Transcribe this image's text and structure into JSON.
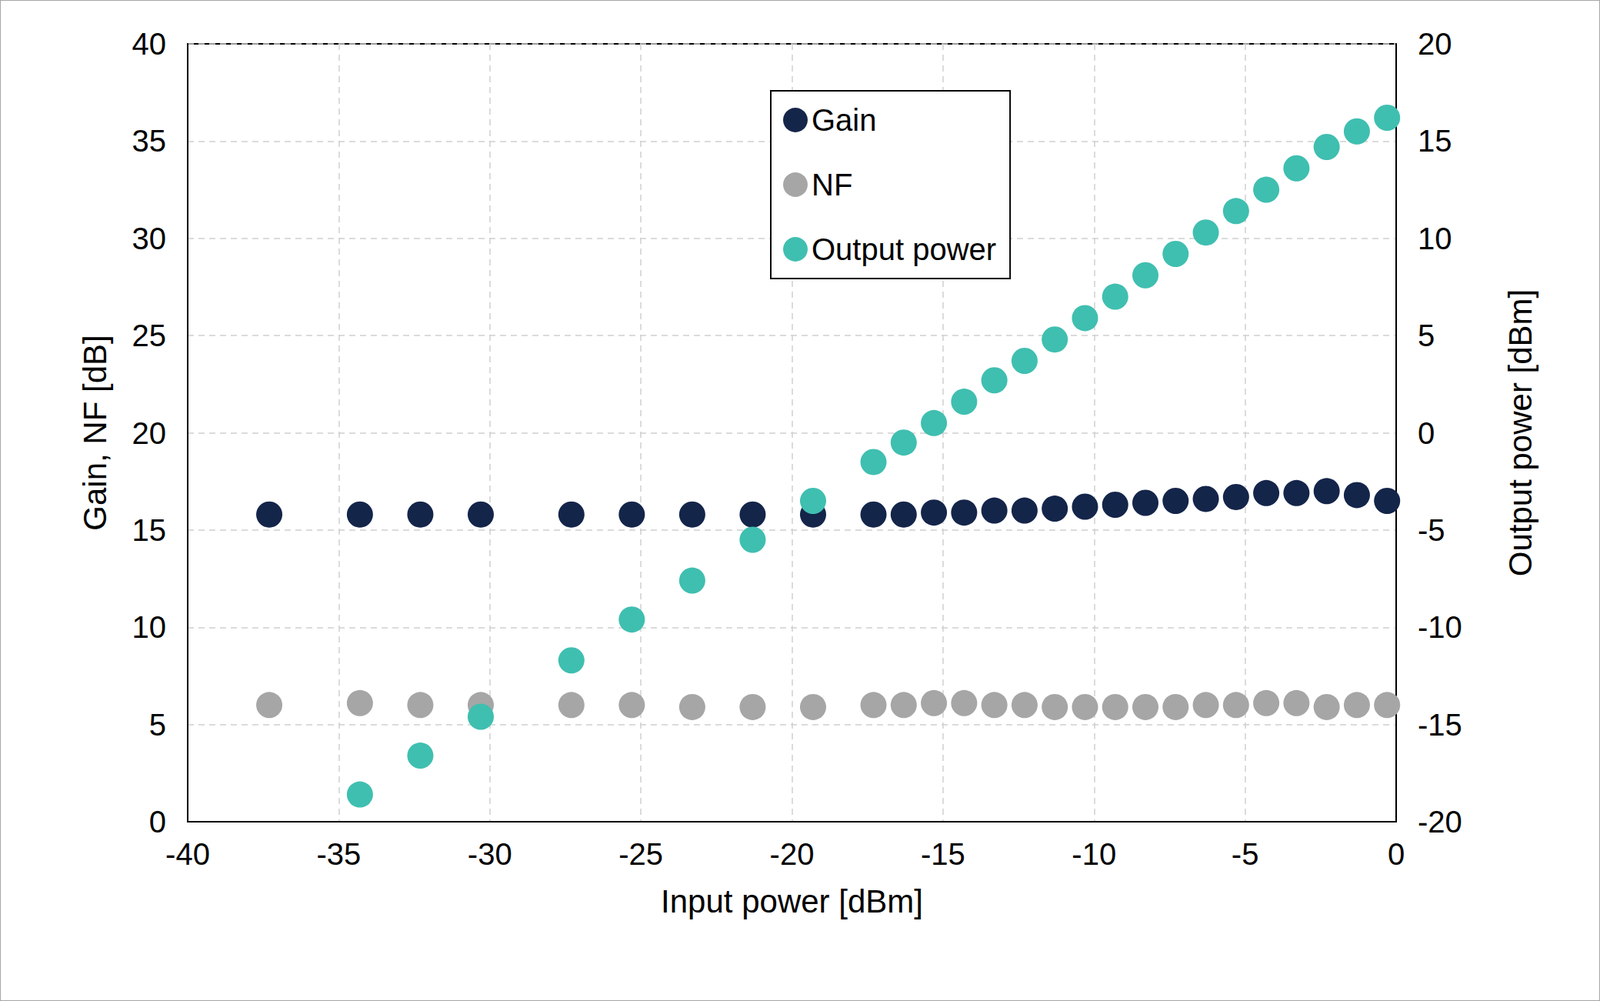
{
  "chart_data": {
    "type": "scatter",
    "x_label": "Input power [dBm]",
    "y_label": "Gain, NF [dB]",
    "y2_label": "Output power [dBm]",
    "x": [
      -37.3,
      -34.3,
      -32.3,
      -30.3,
      -27.3,
      -25.3,
      -23.3,
      -21.3,
      -19.3,
      -17.3,
      -16.3,
      -15.3,
      -14.3,
      -13.3,
      -12.3,
      -11.3,
      -10.3,
      -9.3,
      -8.3,
      -7.3,
      -6.3,
      -5.3,
      -4.3,
      -3.3,
      -2.3,
      -1.3,
      -0.3
    ],
    "series": [
      {
        "name": "Gain",
        "color": "#14254a",
        "axis": "y",
        "values": [
          15.8,
          15.8,
          15.8,
          15.8,
          15.8,
          15.8,
          15.8,
          15.8,
          15.8,
          15.8,
          15.8,
          15.9,
          15.9,
          16.0,
          16.0,
          16.1,
          16.2,
          16.3,
          16.4,
          16.5,
          16.6,
          16.7,
          16.9,
          16.9,
          17.0,
          16.8,
          16.5
        ]
      },
      {
        "name": "NF",
        "color": "#a6a6a6",
        "axis": "y",
        "values": [
          6.0,
          6.1,
          6.0,
          6.0,
          6.0,
          6.0,
          5.9,
          5.9,
          5.9,
          6.0,
          6.0,
          6.1,
          6.1,
          6.0,
          6.0,
          5.9,
          5.9,
          5.9,
          5.9,
          5.9,
          6.0,
          6.0,
          6.1,
          6.1,
          5.9,
          6.0,
          6.0
        ]
      },
      {
        "name": "Output power",
        "color": "#3fbfb0",
        "axis": "y2",
        "values": [
          null,
          -18.6,
          -16.6,
          -14.6,
          -11.7,
          -9.6,
          -7.6,
          -5.5,
          -3.5,
          -1.5,
          -0.5,
          0.5,
          1.6,
          2.7,
          3.7,
          4.8,
          5.9,
          7.0,
          8.1,
          9.2,
          10.3,
          11.4,
          12.5,
          13.6,
          14.7,
          15.5,
          16.2
        ]
      }
    ],
    "xlim": [
      -40,
      0
    ],
    "xticks": [
      -40,
      -35,
      -30,
      -25,
      -20,
      -15,
      -10,
      -5,
      0
    ],
    "ylim": [
      0,
      40
    ],
    "yticks": [
      0,
      5,
      10,
      15,
      20,
      25,
      30,
      35,
      40
    ],
    "y2lim": [
      -20,
      20
    ],
    "y2ticks": [
      -20,
      -15,
      -10,
      -5,
      0,
      5,
      10,
      15,
      20
    ],
    "grid": true,
    "legend": "top",
    "marker": "circle"
  }
}
